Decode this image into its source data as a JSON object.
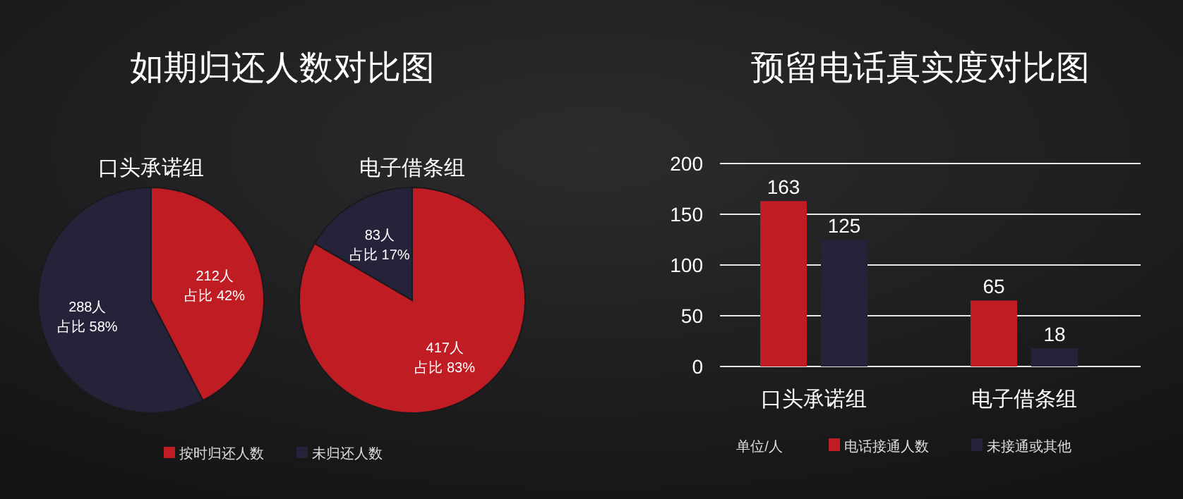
{
  "chart_data": [
    {
      "type": "pie",
      "title": "如期归还人数对比图",
      "subtitle": "口头承诺组",
      "categories": [
        "按时归还人数",
        "未归还人数"
      ],
      "values": [
        212,
        288
      ],
      "colors": [
        "#c01c24",
        "#25233a"
      ],
      "value_labels": [
        "212人占比 42%",
        "288人占比 58%"
      ],
      "legend": "bottom"
    },
    {
      "type": "pie",
      "subtitle": "电子借条组",
      "categories": [
        null,
        null
      ],
      "values": [
        417,
        83
      ],
      "colors": [
        "#c01c24",
        "#25233a"
      ],
      "value_labels": [
        "417人占比 83%",
        "83人占比 17%"
      ]
    },
    {
      "type": "bar",
      "title": "预留电话真实度对比图",
      "categories": [
        "口头承诺组",
        "电子借条组"
      ],
      "series": [
        {
          "name": "电话接通人数",
          "color": "#c01c24",
          "values": [
            163,
            65
          ]
        },
        {
          "name": "未接通或其他",
          "color": "#25233a",
          "values": [
            125,
            18
          ]
        }
      ],
      "ylim": [
        0,
        200
      ],
      "yticks": [
        0,
        50,
        100,
        150,
        200
      ],
      "grid": "y",
      "data_labels": true,
      "legend": "bottom",
      "annotations": [
        "单位/人"
      ]
    }
  ]
}
